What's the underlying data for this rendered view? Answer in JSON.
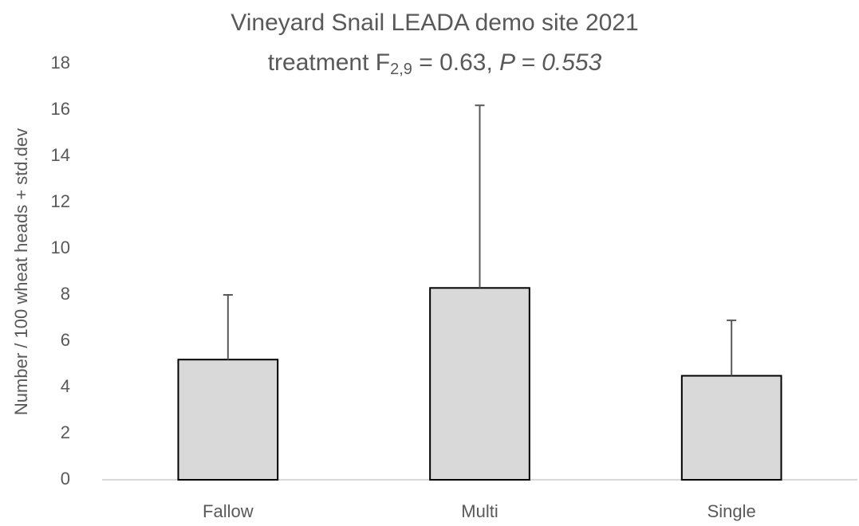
{
  "chart_data": {
    "type": "bar",
    "title": "Vineyard Snail LEADA demo site 2021",
    "subtitle": {
      "text": "treatment F",
      "subscript": "2,9",
      "stat": " = 0.63, ",
      "italic": "P = 0.553"
    },
    "y_label": "Number / 100 wheat heads + std.dev",
    "categories": [
      "Fallow",
      "Multi",
      "Single"
    ],
    "values": [
      5.2,
      8.3,
      4.5
    ],
    "errors": [
      2.8,
      7.9,
      2.4
    ],
    "color": "#d9d9d9",
    "ylim": [
      0,
      18
    ],
    "yticks": [
      0,
      2,
      4,
      6,
      8,
      10,
      12,
      14,
      16,
      18
    ],
    "grid": false
  }
}
